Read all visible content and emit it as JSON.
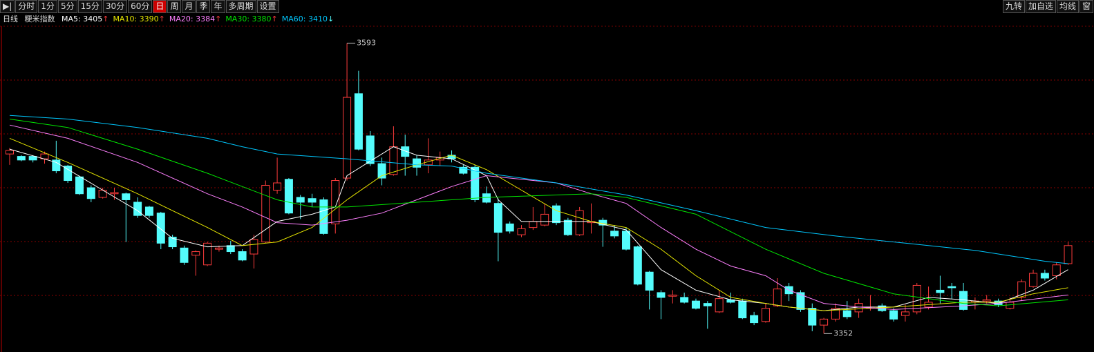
{
  "toolbar": {
    "left": [
      "▶|",
      "分时",
      "1分",
      "5分",
      "15分",
      "30分",
      "60分",
      "日",
      "周",
      "月",
      "季",
      "年",
      "多周期",
      "设置"
    ],
    "selected": "日",
    "right": [
      "九转",
      "加自选",
      "均线",
      "窗"
    ]
  },
  "chart_data": {
    "type": "candlestick",
    "period": "日线",
    "name": "粳米指数",
    "open": [
      3501,
      3499,
      3499,
      3497,
      3496,
      3491,
      3482,
      3473,
      3465,
      3468,
      3468,
      3461,
      3457,
      3452,
      3432,
      3423,
      3417,
      3409,
      3422,
      3425,
      3420,
      3418,
      3428,
      3471,
      3480,
      3465,
      3464,
      3463,
      3443,
      3481,
      3551,
      3516,
      3493,
      3484,
      3507,
      3497,
      3492,
      3496,
      3500,
      3490,
      3490,
      3468,
      3460,
      3443,
      3434,
      3440,
      3442,
      3458,
      3446,
      3434,
      3444,
      3446,
      3437,
      3437,
      3424,
      3403,
      3386,
      3383,
      3382,
      3379,
      3377,
      3370,
      3380,
      3379,
      3367,
      3362,
      3375,
      3391,
      3386,
      3373,
      3359,
      3364,
      3371,
      3370,
      3373,
      3375,
      3371,
      3367,
      3370,
      3374,
      3388,
      3391,
      3387,
      3378,
      3379,
      3379,
      3373,
      3382,
      3391,
      3402,
      3400,
      3410
    ],
    "high": [
      3506,
      3500,
      3500,
      3503,
      3512,
      3492,
      3483,
      3475,
      3473,
      3473,
      3469,
      3465,
      3458,
      3453,
      3434,
      3425,
      3421,
      3428,
      3425,
      3429,
      3422,
      3434,
      3479,
      3498,
      3481,
      3467,
      3468,
      3465,
      3481,
      3593,
      3570,
      3520,
      3498,
      3524,
      3517,
      3500,
      3514,
      3503,
      3504,
      3492,
      3492,
      3474,
      3464,
      3445,
      3442,
      3457,
      3460,
      3460,
      3448,
      3457,
      3460,
      3448,
      3442,
      3440,
      3425,
      3404,
      3388,
      3388,
      3386,
      3381,
      3379,
      3388,
      3386,
      3381,
      3370,
      3377,
      3398,
      3394,
      3388,
      3377,
      3365,
      3377,
      3379,
      3381,
      3384,
      3377,
      3373,
      3376,
      3394,
      3391,
      3400,
      3394,
      3394,
      3382,
      3384,
      3381,
      3382,
      3397,
      3405,
      3405,
      3411,
      3428
    ],
    "low": [
      3492,
      3495,
      3494,
      3493,
      3485,
      3477,
      3467,
      3461,
      3464,
      3463,
      3428,
      3448,
      3448,
      3422,
      3422,
      3409,
      3400,
      3408,
      3420,
      3418,
      3412,
      3406,
      3427,
      3468,
      3451,
      3447,
      3457,
      3434,
      3435,
      3479,
      3504,
      3491,
      3475,
      3483,
      3483,
      3483,
      3485,
      3491,
      3494,
      3484,
      3461,
      3460,
      3412,
      3435,
      3432,
      3438,
      3441,
      3442,
      3433,
      3433,
      3435,
      3424,
      3431,
      3421,
      3392,
      3372,
      3364,
      3377,
      3377,
      3372,
      3356,
      3369,
      3377,
      3364,
      3359,
      3361,
      3374,
      3379,
      3370,
      3354,
      3352,
      3362,
      3364,
      3365,
      3371,
      3370,
      3362,
      3362,
      3368,
      3372,
      3377,
      3381,
      3371,
      3372,
      3377,
      3374,
      3372,
      3379,
      3390,
      3396,
      3397,
      3409
    ],
    "close": [
      3504,
      3496,
      3496,
      3501,
      3487,
      3479,
      3468,
      3464,
      3471,
      3469,
      3463,
      3450,
      3450,
      3427,
      3424,
      3411,
      3420,
      3427,
      3423,
      3420,
      3413,
      3430,
      3475,
      3477,
      3452,
      3461,
      3461,
      3435,
      3479,
      3548,
      3505,
      3493,
      3481,
      3507,
      3499,
      3490,
      3496,
      3498,
      3497,
      3485,
      3463,
      3461,
      3436,
      3437,
      3439,
      3445,
      3451,
      3444,
      3434,
      3454,
      3445,
      3442,
      3433,
      3422,
      3393,
      3388,
      3382,
      3384,
      3378,
      3373,
      3375,
      3381,
      3378,
      3365,
      3361,
      3373,
      3389,
      3385,
      3372,
      3359,
      3364,
      3373,
      3366,
      3377,
      3374,
      3371,
      3364,
      3370,
      3392,
      3378,
      3386,
      3390,
      3372,
      3379,
      3380,
      3376,
      3378,
      3395,
      3402,
      3398,
      3409,
      3425
    ],
    "up_color": "#ff3c3c",
    "down_color": "#54fcfc",
    "ylim": [
      3339,
      3607
    ],
    "grid": true,
    "max_label": 3593,
    "min_label": 3352,
    "ma": [
      {
        "name": "MA5",
        "label": "MA5: 3405",
        "arrow": "↑",
        "last": 3405,
        "color": "#ffffff",
        "x": [
          0,
          4,
          8,
          11,
          14,
          17,
          20,
          23,
          26,
          28,
          29,
          33,
          35,
          38,
          41,
          42,
          44,
          47,
          50,
          53,
          56,
          59,
          62,
          65,
          67,
          70,
          73,
          76,
          79,
          82,
          85,
          88,
          91
        ],
        "values": [
          3505,
          3494,
          3471,
          3454,
          3431,
          3424,
          3425,
          3445,
          3451,
          3457,
          3483,
          3507,
          3500,
          3497,
          3483,
          3463,
          3445,
          3445,
          3445,
          3438,
          3405,
          3388,
          3380,
          3377,
          3374,
          3371,
          3374,
          3374,
          3382,
          3380,
          3377,
          3388,
          3405
        ]
      },
      {
        "name": "MA10",
        "label": "MA10: 3390",
        "arrow": "↑",
        "last": 3390,
        "color": "#e6e600",
        "x": [
          0,
          5,
          11,
          17,
          20,
          23,
          26,
          29,
          32,
          35,
          38,
          41,
          44,
          47,
          50,
          53,
          56,
          59,
          62,
          65,
          67,
          70,
          76,
          82,
          85,
          88,
          91
        ],
        "values": [
          3514,
          3494,
          3468,
          3440,
          3425,
          3428,
          3440,
          3463,
          3483,
          3492,
          3500,
          3488,
          3471,
          3454,
          3445,
          3440,
          3422,
          3400,
          3382,
          3377,
          3374,
          3371,
          3374,
          3378,
          3378,
          3385,
          3390
        ]
      },
      {
        "name": "MA20",
        "label": "MA20: 3384",
        "arrow": "↑",
        "last": 3384,
        "color": "#ff80ff",
        "x": [
          0,
          5,
          11,
          17,
          20,
          23,
          26,
          29,
          32,
          35,
          38,
          41,
          47,
          50,
          53,
          56,
          59,
          62,
          65,
          67,
          70,
          73,
          76,
          82,
          85,
          91
        ],
        "values": [
          3525,
          3514,
          3494,
          3468,
          3457,
          3444,
          3442,
          3446,
          3452,
          3463,
          3474,
          3483,
          3477,
          3468,
          3460,
          3440,
          3422,
          3408,
          3400,
          3388,
          3377,
          3374,
          3372,
          3375,
          3377,
          3384
        ]
      },
      {
        "name": "MA30",
        "label": "MA30: 3380",
        "arrow": "↑",
        "last": 3380,
        "color": "#00e600",
        "x": [
          0,
          5,
          11,
          17,
          20,
          23,
          26,
          29,
          35,
          41,
          47,
          50,
          53,
          59,
          65,
          70,
          76,
          82,
          85,
          91
        ],
        "values": [
          3530,
          3523,
          3505,
          3485,
          3474,
          3463,
          3457,
          3457,
          3461,
          3465,
          3467,
          3468,
          3465,
          3451,
          3422,
          3402,
          3385,
          3377,
          3375,
          3380
        ]
      },
      {
        "name": "MA60",
        "label": "MA60: 3410",
        "arrow": "↓",
        "last": 3410,
        "color": "#00c8ff",
        "x": [
          0,
          5,
          11,
          17,
          20,
          23,
          29,
          35,
          38,
          41,
          47,
          53,
          59,
          65,
          71,
          77,
          83,
          89,
          91
        ],
        "values": [
          3533,
          3530,
          3523,
          3514,
          3507,
          3501,
          3497,
          3492,
          3491,
          3485,
          3477,
          3467,
          3454,
          3440,
          3433,
          3427,
          3421,
          3412,
          3410
        ]
      }
    ]
  }
}
